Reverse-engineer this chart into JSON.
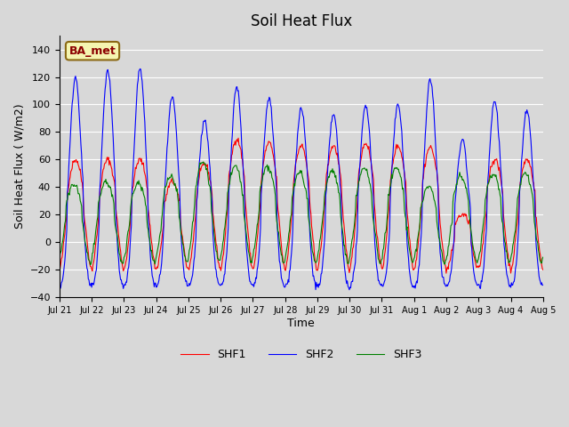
{
  "title": "Soil Heat Flux",
  "ylabel": "Soil Heat Flux ( W/m2)",
  "xlabel": "Time",
  "ylim": [
    -40,
    150
  ],
  "yticks": [
    -40,
    -20,
    0,
    20,
    40,
    60,
    80,
    100,
    120,
    140
  ],
  "background_color": "#d8d8d8",
  "plot_bg_color": "#d8d8d8",
  "grid_color": "white",
  "legend_labels": [
    "SHF1",
    "SHF2",
    "SHF3"
  ],
  "legend_colors": [
    "red",
    "blue",
    "green"
  ],
  "annotation_text": "BA_met",
  "annotation_color": "#8b0000",
  "annotation_bg": "#f5f5b0",
  "annotation_border": "#8b6914",
  "n_days": 15,
  "date_labels": [
    "Jul 21",
    "Jul 22",
    "Jul 23",
    "Jul 24",
    "Jul 25",
    "Jul 26",
    "Jul 27",
    "Jul 28",
    "Jul 29",
    "Jul 30",
    "Jul 31",
    "Aug 1",
    "Aug 2",
    "Aug 3",
    "Aug 4",
    "Aug 5"
  ],
  "peaks_shf1": [
    60,
    60,
    60,
    44,
    57,
    75,
    72,
    70,
    70,
    72,
    70,
    69,
    20,
    60,
    60
  ],
  "peaks_shf2": [
    120,
    125,
    126,
    105,
    89,
    113,
    105,
    97,
    93,
    100,
    100,
    118,
    75,
    103,
    95
  ],
  "peaks_shf3": [
    42,
    44,
    43,
    48,
    58,
    55,
    55,
    51,
    52,
    54,
    54,
    40,
    48,
    50,
    50
  ],
  "min_shf1": -20,
  "min_shf2": -32,
  "min_shf3": -15
}
